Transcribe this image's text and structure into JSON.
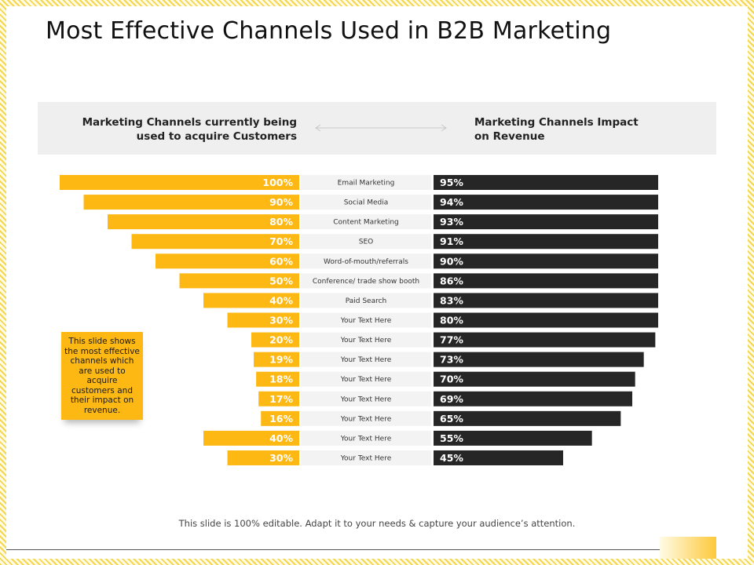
{
  "title": "Most Effective Channels Used in B2B Marketing",
  "header": {
    "left_line1": "Marketing Channels currently being",
    "left_line2": "used to acquire Customers",
    "right_line1": "Marketing Channels Impact",
    "right_line2": "on Revenue"
  },
  "note": "This slide shows the most effective channels which are used to acquire customers and their impact on revenue.",
  "footer": "This slide is 100% editable. Adapt it to your needs & capture your audience’s attention.",
  "colors": {
    "acquire": "#fdb813",
    "revenue": "#262626",
    "category_bg": "#f3f3f3"
  },
  "chart_data": {
    "type": "bar",
    "title": "Most Effective Channels Used in B2B Marketing",
    "orientation": "horizontal",
    "layout": "butterfly",
    "categories": [
      "Email Marketing",
      "Social Media",
      "Content Marketing",
      "SEO",
      "Word-of-mouth/referrals",
      "Conference/ trade show booth",
      "Paid Search",
      "Your Text Here",
      "Your Text Here",
      "Your Text Here",
      "Your Text Here",
      "Your Text Here",
      "Your Text Here",
      "Your Text Here",
      "Your Text Here"
    ],
    "series": [
      {
        "name": "Marketing Channels currently being used to acquire Customers",
        "values": [
          100,
          90,
          80,
          70,
          60,
          50,
          40,
          30,
          20,
          19,
          18,
          17,
          16,
          40,
          30
        ],
        "labels": [
          "100%",
          "90%",
          "80%",
          "70%",
          "60%",
          "50%",
          "40%",
          "30%",
          "20%",
          "19%",
          "18%",
          "17%",
          "16%",
          "40%",
          "30%"
        ]
      },
      {
        "name": "Marketing Channels Impact on Revenue",
        "values": [
          95,
          94,
          93,
          91,
          90,
          86,
          83,
          80,
          77,
          73,
          70,
          69,
          65,
          55,
          45
        ],
        "labels": [
          "95%",
          "94%",
          "93%",
          "91%",
          "90%",
          "86%",
          "83%",
          "80%",
          "77%",
          "73%",
          "70%",
          "69%",
          "65%",
          "55%",
          "45%"
        ]
      }
    ],
    "unit": "%"
  }
}
